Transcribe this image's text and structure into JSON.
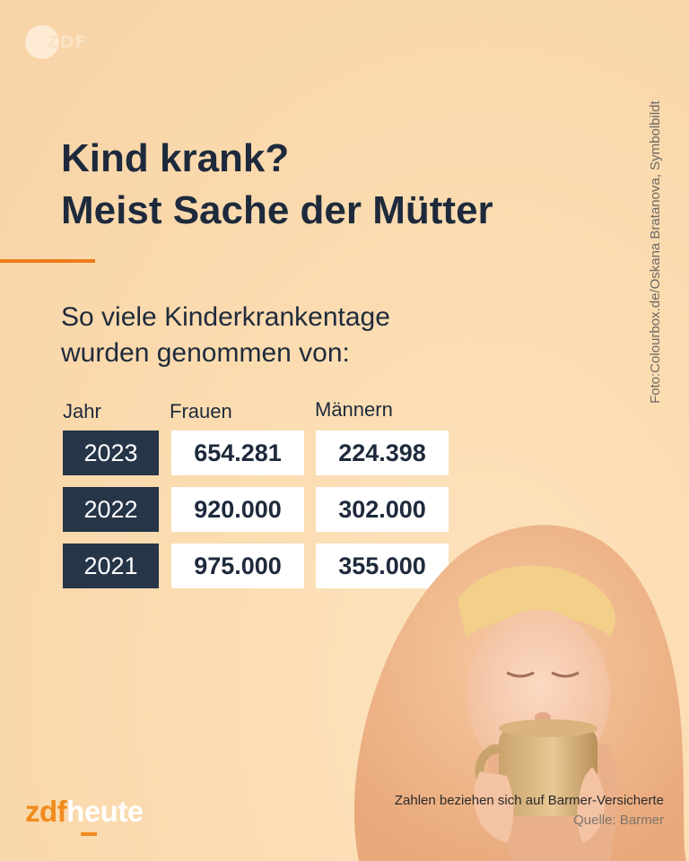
{
  "watermark": {
    "text": "ZDF"
  },
  "title": {
    "line1": "Kind krank?",
    "line2": "Meist Sache der Mütter"
  },
  "subtitle": {
    "line1": "So viele Kinderkrankentage",
    "line2": "wurden genommen von:"
  },
  "photo_credit": "Foto:Colourbox.de/Oskana Bratanova, Symbolbildt",
  "table": {
    "headers": {
      "year": "Jahr",
      "women": "Frauen",
      "men": "Männern"
    },
    "rows": [
      {
        "year": "2023",
        "women": "654.281",
        "men": "224.398"
      },
      {
        "year": "2022",
        "women": "920.000",
        "men": "302.000"
      },
      {
        "year": "2021",
        "women": "975.000",
        "men": "355.000"
      }
    ]
  },
  "footer": {
    "brand_zdf": "zdf",
    "brand_heute": "heute",
    "note": "Zahlen beziehen sich auf Barmer-Versicherte",
    "source": "Quelle: Barmer"
  },
  "colors": {
    "accent": "#ee7d1a",
    "navy": "#263548",
    "text": "#1e2a3c",
    "background": "#fbdcb0"
  }
}
